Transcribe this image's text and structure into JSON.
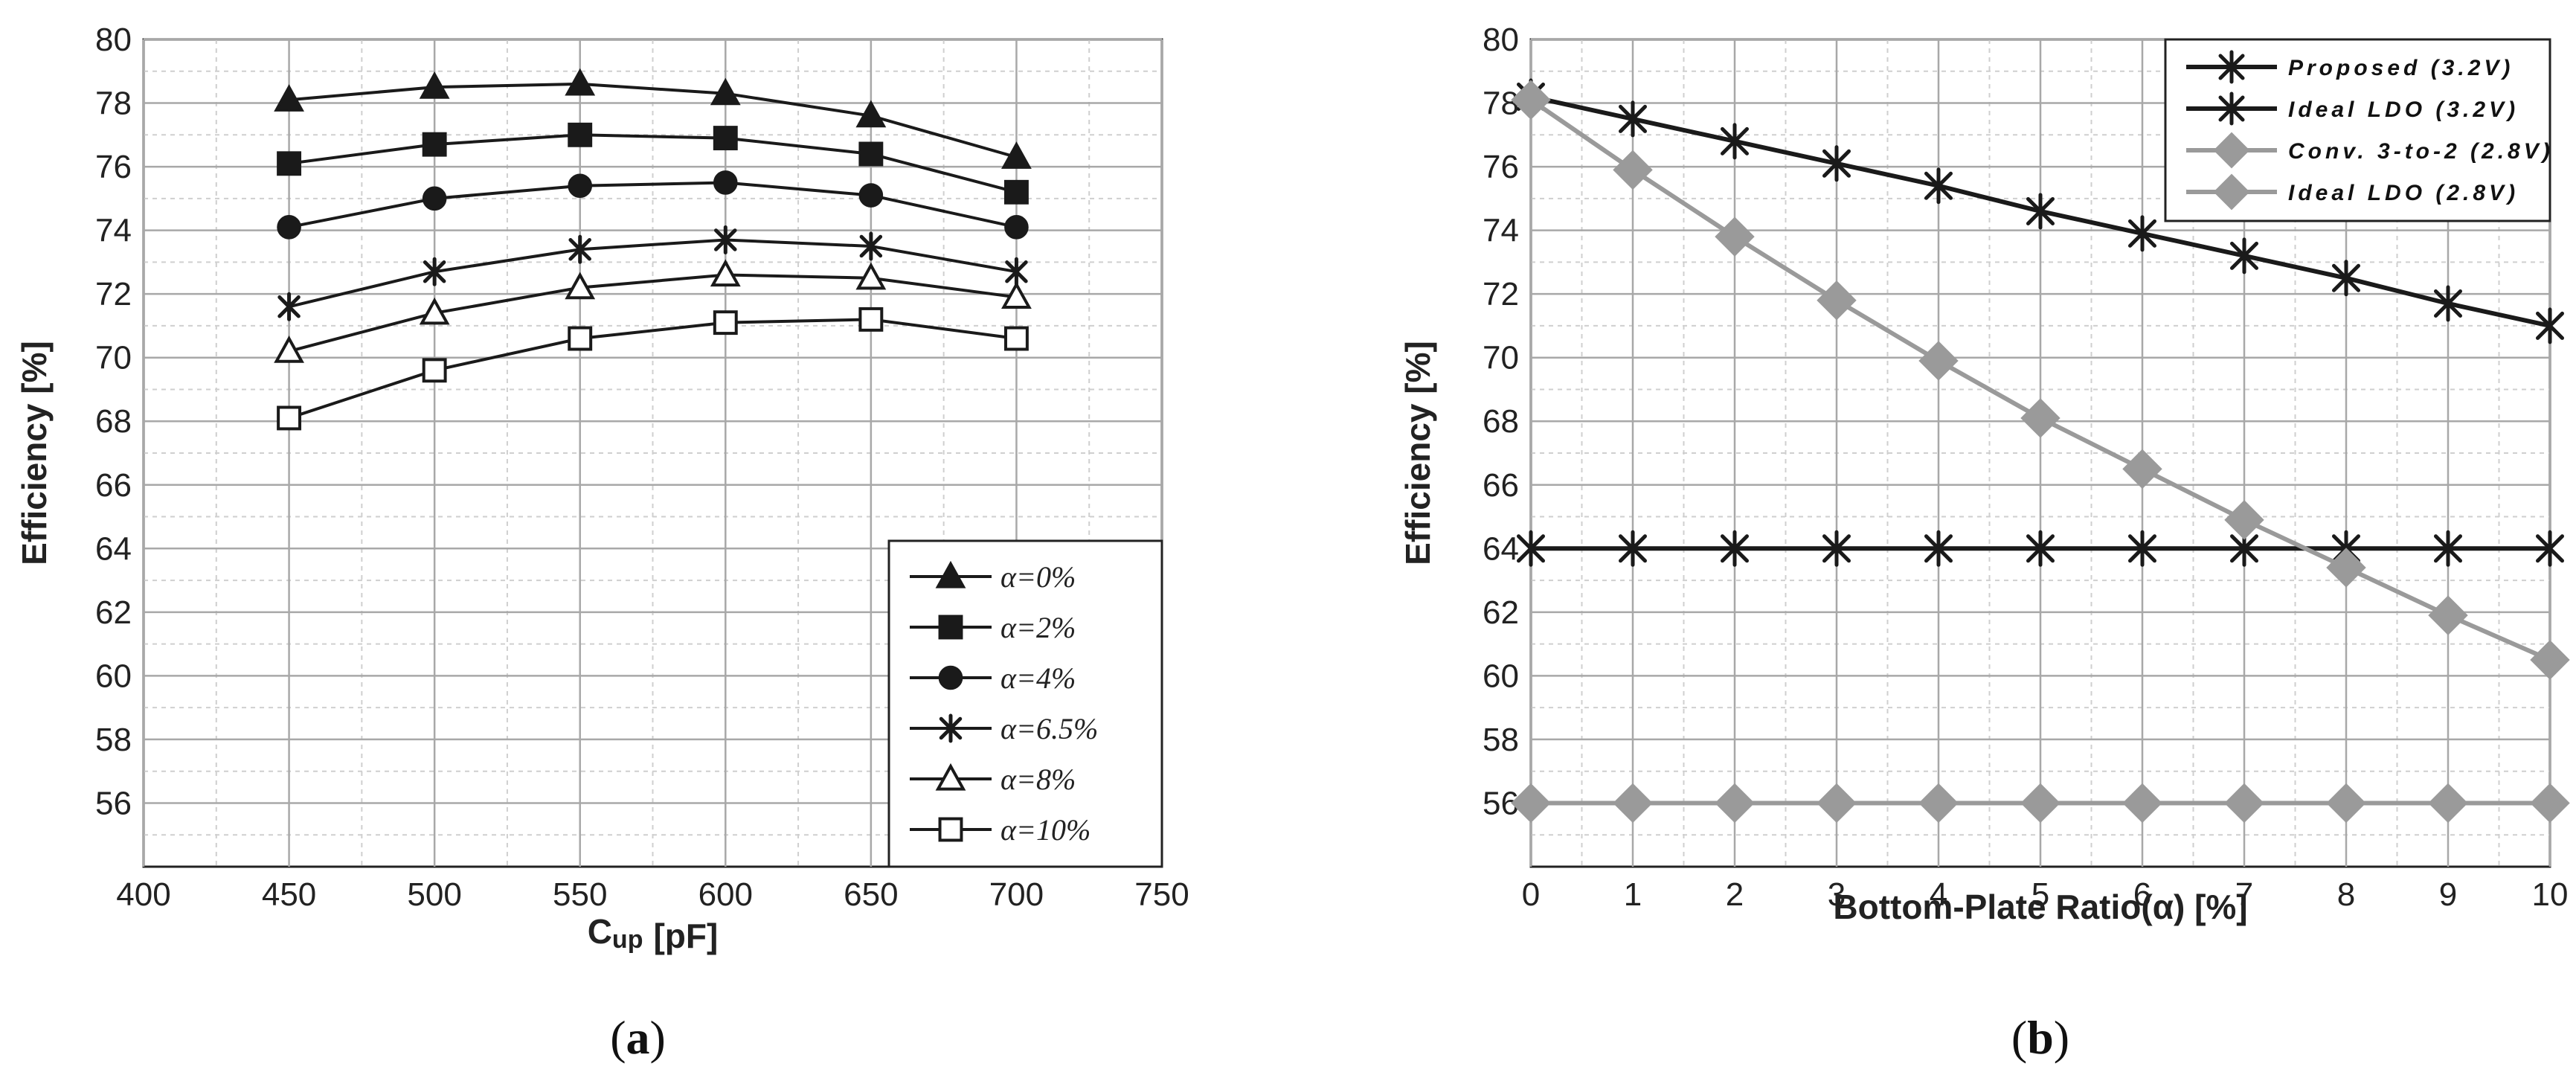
{
  "chart_data": [
    {
      "type": "line",
      "panel_label": "(a)",
      "panel_letter": "a",
      "xlabel": "",
      "xlabel_main": "C",
      "xlabel_sub": "up",
      "xlabel_unit": "[pF]",
      "ylabel": "Efficiency [%]",
      "xlim": [
        400,
        750
      ],
      "ylim": [
        54,
        80
      ],
      "xticks": [
        400,
        450,
        500,
        550,
        600,
        650,
        700,
        750
      ],
      "yticks": [
        56,
        58,
        60,
        62,
        64,
        66,
        68,
        70,
        72,
        74,
        76,
        78,
        80
      ],
      "grid": true,
      "legend_position": "bottom-right",
      "x": [
        450,
        500,
        550,
        600,
        650,
        700
      ],
      "series": [
        {
          "name": "α=0%",
          "marker": "triangle-filled",
          "color": "#1a1a1a",
          "values": [
            78.1,
            78.5,
            78.6,
            78.3,
            77.6,
            76.3
          ]
        },
        {
          "name": "α=2%",
          "marker": "square-filled",
          "color": "#1a1a1a",
          "values": [
            76.1,
            76.7,
            77.0,
            76.9,
            76.4,
            75.2
          ]
        },
        {
          "name": "α=4%",
          "marker": "circle-filled",
          "color": "#1a1a1a",
          "values": [
            74.1,
            75.0,
            75.4,
            75.5,
            75.1,
            74.1
          ]
        },
        {
          "name": "α=6.5%",
          "marker": "asterisk",
          "color": "#1a1a1a",
          "values": [
            71.6,
            72.7,
            73.4,
            73.7,
            73.5,
            72.7
          ]
        },
        {
          "name": "α=8%",
          "marker": "triangle-open",
          "color": "#1a1a1a",
          "values": [
            70.2,
            71.4,
            72.2,
            72.6,
            72.5,
            71.9
          ]
        },
        {
          "name": "α=10%",
          "marker": "square-open",
          "color": "#1a1a1a",
          "values": [
            68.1,
            69.6,
            70.6,
            71.1,
            71.2,
            70.6
          ]
        }
      ]
    },
    {
      "type": "line",
      "panel_label": "(b)",
      "panel_letter": "b",
      "xlabel": "Bottom-Plate Ratio(α)  [%]",
      "ylabel": "Efficiency  [%]",
      "xlim": [
        0,
        10
      ],
      "ylim": [
        54,
        80
      ],
      "xticks": [
        0,
        1,
        2,
        3,
        4,
        5,
        6,
        7,
        8,
        9,
        10
      ],
      "yticks": [
        56,
        58,
        60,
        62,
        64,
        66,
        68,
        70,
        72,
        74,
        76,
        78,
        80
      ],
      "grid": true,
      "legend_position": "top-right",
      "x": [
        0,
        1,
        2,
        3,
        4,
        5,
        6,
        7,
        8,
        9,
        10
      ],
      "series": [
        {
          "name": "Proposed (3.2V)",
          "marker": "asterisk",
          "color": "#1a1a1a",
          "values": [
            78.2,
            77.5,
            76.8,
            76.1,
            75.4,
            74.6,
            73.9,
            73.2,
            72.5,
            71.7,
            71.0
          ]
        },
        {
          "name": "Ideal LDO (3.2V)",
          "marker": "asterisk",
          "color": "#1a1a1a",
          "values": [
            64,
            64,
            64,
            64,
            64,
            64,
            64,
            64,
            64,
            64,
            64
          ]
        },
        {
          "name": "Conv. 3-to-2 (2.8V)",
          "marker": "diamond",
          "color": "#9a9a9a",
          "values": [
            78.1,
            75.9,
            73.8,
            71.8,
            69.9,
            68.1,
            66.5,
            64.9,
            63.4,
            61.9,
            60.5
          ]
        },
        {
          "name": "Ideal LDO (2.8V)",
          "marker": "diamond",
          "color": "#9a9a9a",
          "values": [
            56,
            56,
            56,
            56,
            56,
            56,
            56,
            56,
            56,
            56,
            56
          ]
        }
      ]
    }
  ]
}
